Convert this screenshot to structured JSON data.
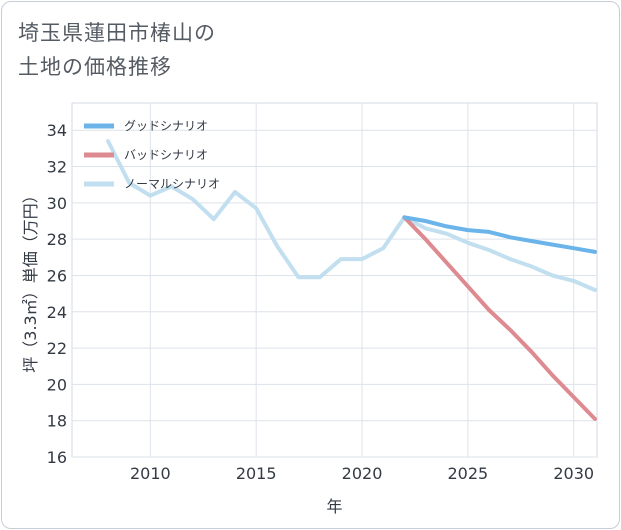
{
  "title_lines": [
    "埼玉県蓮田市椿山の",
    "土地の価格推移"
  ],
  "chart_data": {
    "type": "line",
    "title": "埼玉県蓮田市椿山の土地の価格推移",
    "xlabel": "年",
    "ylabel": "坪（3.3㎡）単価（万円）",
    "xlim": [
      2006.3,
      2031.1
    ],
    "ylim": [
      16,
      35.5
    ],
    "xticks": [
      2010,
      2015,
      2020,
      2025,
      2030
    ],
    "yticks": [
      16,
      18,
      20,
      22,
      24,
      26,
      28,
      30,
      32,
      34
    ],
    "grid": true,
    "legend_position": "top-left",
    "series": [
      {
        "name": "グッドシナリオ",
        "color": "#6ab4ea",
        "x": [
          2022,
          2023,
          2024,
          2025,
          2026,
          2027,
          2028,
          2029,
          2030,
          2031
        ],
        "y": [
          29.2,
          29.0,
          28.7,
          28.5,
          28.4,
          28.1,
          27.9,
          27.7,
          27.5,
          27.3
        ]
      },
      {
        "name": "バッドシナリオ",
        "color": "#dd8a90",
        "x": [
          2022,
          2023,
          2024,
          2025,
          2026,
          2027,
          2028,
          2029,
          2030,
          2031
        ],
        "y": [
          29.2,
          28.0,
          26.7,
          25.4,
          24.1,
          23.0,
          21.8,
          20.5,
          19.3,
          18.1
        ]
      },
      {
        "name": "ノーマルシナリオ",
        "color": "#c2dff0",
        "x": [
          2008,
          2009,
          2010,
          2011,
          2012,
          2013,
          2014,
          2015,
          2016,
          2017,
          2018,
          2019,
          2020,
          2021,
          2022,
          2023,
          2024,
          2025,
          2026,
          2027,
          2028,
          2029,
          2030,
          2031
        ],
        "y": [
          33.4,
          31.1,
          30.4,
          30.9,
          30.2,
          29.1,
          30.6,
          29.7,
          27.6,
          25.9,
          25.9,
          26.9,
          26.9,
          27.5,
          29.2,
          28.6,
          28.3,
          27.8,
          27.4,
          26.9,
          26.5,
          26.0,
          25.7,
          25.2
        ]
      }
    ]
  }
}
